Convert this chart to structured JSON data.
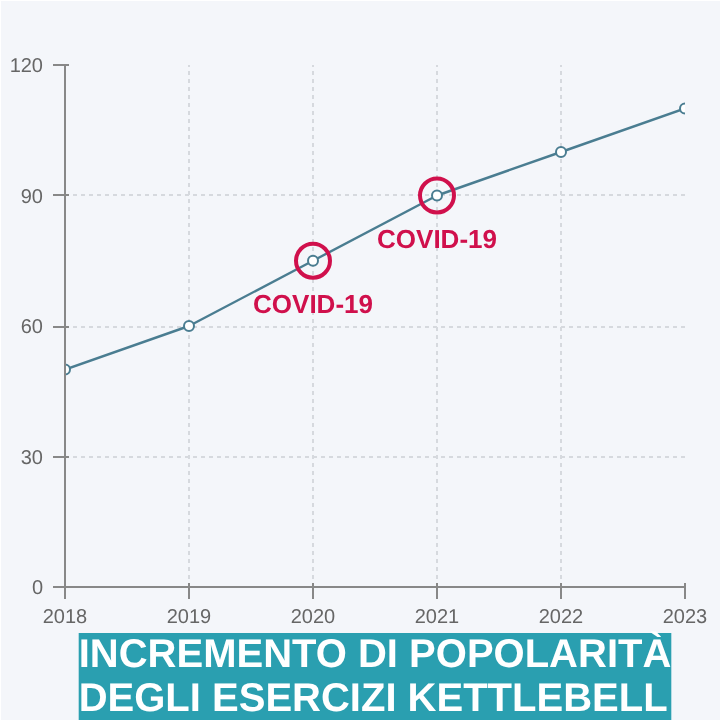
{
  "chart_data": {
    "type": "line",
    "title": "INCREMENTO DI POPOLARITÀ DEGLI ESERCIZI KETTLEBELL",
    "x": [
      2018,
      2019,
      2020,
      2021,
      2022,
      2023
    ],
    "series": [
      {
        "color": "#4a7d91",
        "values": [
          50,
          60,
          75,
          90,
          100,
          110
        ]
      }
    ],
    "xlim": [
      2018,
      2023
    ],
    "xticks": [
      2018,
      2019,
      2020,
      2021,
      2022,
      2023
    ],
    "ylim": [
      0,
      120
    ],
    "yticks": [
      0,
      30,
      60,
      90,
      120
    ],
    "grid": true,
    "marker": "circle",
    "line_style": "solid",
    "annotations": [
      {
        "text": "COVID-19",
        "x": 2020,
        "y": 75
      },
      {
        "text": "COVID-19",
        "x": 2021,
        "y": 90
      }
    ]
  }
}
